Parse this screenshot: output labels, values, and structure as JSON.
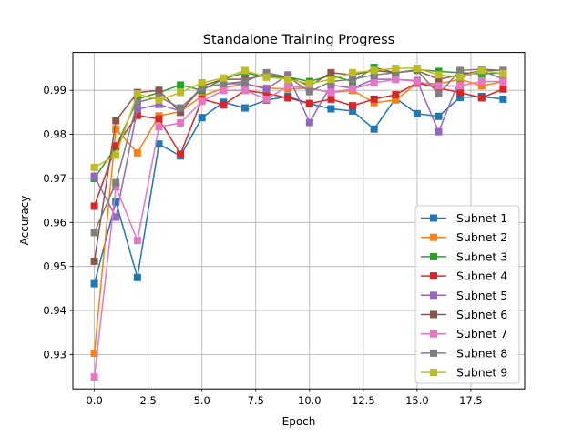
{
  "chart_data": {
    "type": "line",
    "title": "Standalone Training Progress",
    "xlabel": "Epoch",
    "ylabel": "Accuracy",
    "xlim": [
      -1.0,
      20.0
    ],
    "ylim": [
      0.9222,
      0.9986
    ],
    "xticks": [
      0.0,
      2.5,
      5.0,
      7.5,
      10.0,
      12.5,
      15.0,
      17.5
    ],
    "xtick_labels": [
      "0.0",
      "2.5",
      "5.0",
      "7.5",
      "10.0",
      "12.5",
      "15.0",
      "17.5"
    ],
    "yticks": [
      0.93,
      0.94,
      0.95,
      0.96,
      0.97,
      0.98,
      0.99
    ],
    "ytick_labels": [
      "0.93",
      "0.94",
      "0.95",
      "0.96",
      "0.97",
      "0.98",
      "0.99"
    ],
    "grid": true,
    "legend_position": "lower-right",
    "marker": "square",
    "x": [
      0,
      1,
      2,
      3,
      4,
      5,
      6,
      7,
      8,
      9,
      10,
      11,
      12,
      13,
      14,
      15,
      16,
      17,
      18,
      19
    ],
    "series": [
      {
        "name": "Subnet 1",
        "color": "#1f77b4",
        "values": [
          0.9461,
          0.9647,
          0.9475,
          0.9778,
          0.9751,
          0.9838,
          0.9873,
          0.986,
          0.9878,
          0.9886,
          0.987,
          0.9858,
          0.9853,
          0.9812,
          0.9882,
          0.9847,
          0.9841,
          0.9884,
          0.9886,
          0.988
        ]
      },
      {
        "name": "Subnet 2",
        "color": "#ff7f0e",
        "values": [
          0.9303,
          0.9812,
          0.9758,
          0.9842,
          0.9852,
          0.9887,
          0.9905,
          0.9915,
          0.9905,
          0.9903,
          0.9905,
          0.9895,
          0.99,
          0.9872,
          0.9878,
          0.9916,
          0.9915,
          0.9925,
          0.991,
          0.992
        ]
      },
      {
        "name": "Subnet 3",
        "color": "#2ca02c",
        "values": [
          0.97,
          0.9771,
          0.988,
          0.9895,
          0.9912,
          0.99,
          0.9926,
          0.994,
          0.993,
          0.993,
          0.992,
          0.9934,
          0.992,
          0.9952,
          0.994,
          0.9947,
          0.9943,
          0.994,
          0.9937,
          0.994
        ]
      },
      {
        "name": "Subnet 4",
        "color": "#d62728",
        "values": [
          0.9637,
          0.9774,
          0.9843,
          0.9835,
          0.9755,
          0.988,
          0.9867,
          0.99,
          0.9893,
          0.9883,
          0.987,
          0.988,
          0.9865,
          0.988,
          0.989,
          0.9917,
          0.9905,
          0.9895,
          0.9883,
          0.9903
        ]
      },
      {
        "name": "Subnet 5",
        "color": "#9467bd",
        "values": [
          0.9705,
          0.9612,
          0.9857,
          0.9868,
          0.9853,
          0.9905,
          0.9915,
          0.9915,
          0.9903,
          0.9935,
          0.9827,
          0.9912,
          0.9905,
          0.9925,
          0.9925,
          0.9922,
          0.9806,
          0.9928,
          0.9945,
          0.9925
        ]
      },
      {
        "name": "Subnet 6",
        "color": "#8c564b",
        "values": [
          0.9512,
          0.9831,
          0.9895,
          0.99,
          0.985,
          0.991,
          0.9925,
          0.9925,
          0.9935,
          0.993,
          0.991,
          0.994,
          0.9935,
          0.9945,
          0.994,
          0.9945,
          0.9925,
          0.9935,
          0.9945,
          0.9945
        ]
      },
      {
        "name": "Subnet 7",
        "color": "#e377c2",
        "values": [
          0.9249,
          0.9681,
          0.9559,
          0.9817,
          0.9826,
          0.9875,
          0.99,
          0.99,
          0.988,
          0.991,
          0.9905,
          0.9895,
          0.9903,
          0.9917,
          0.9925,
          0.992,
          0.991,
          0.991,
          0.992,
          0.992
        ]
      },
      {
        "name": "Subnet 8",
        "color": "#7f7f7f",
        "values": [
          0.9577,
          0.969,
          0.9873,
          0.9885,
          0.986,
          0.9905,
          0.9915,
          0.992,
          0.994,
          0.993,
          0.9897,
          0.992,
          0.9925,
          0.9935,
          0.994,
          0.9945,
          0.9892,
          0.9945,
          0.9948,
          0.9945
        ]
      },
      {
        "name": "Subnet 9",
        "color": "#bcbd22",
        "values": [
          0.9725,
          0.9753,
          0.9892,
          0.9878,
          0.9895,
          0.9917,
          0.9928,
          0.9945,
          0.993,
          0.9925,
          0.9915,
          0.9925,
          0.994,
          0.9945,
          0.995,
          0.995,
          0.9935,
          0.993,
          0.9945,
          0.9938
        ]
      }
    ]
  }
}
